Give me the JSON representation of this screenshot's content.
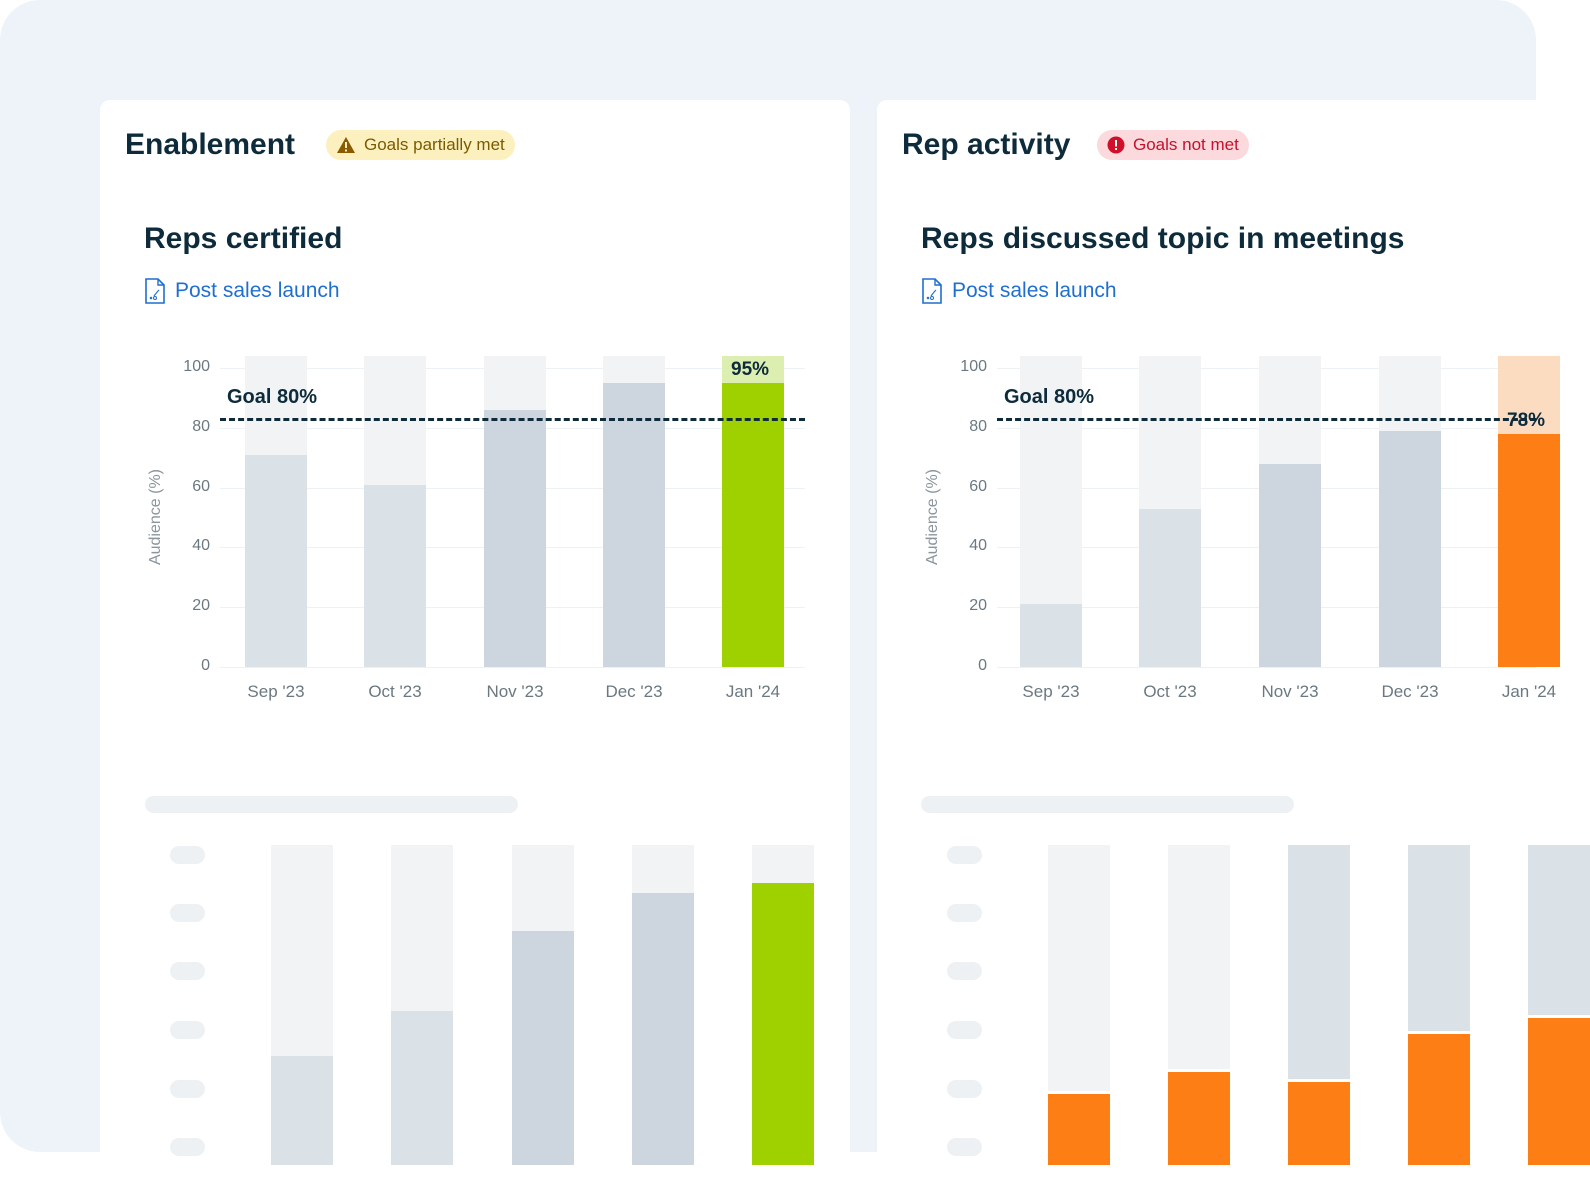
{
  "colors": {
    "page_bg": "#eef3fa",
    "bar_bg": "#f1f3f5",
    "bar_past": "#dbe2e7",
    "bar_past2": "#cdd6df",
    "goal_met": "#9fd100",
    "goal_met_bg": "#dcefb0",
    "goal_missed": "#fd7e14",
    "goal_missed_bg": "#fcdcc1",
    "link": "#1f6fd1"
  },
  "cards": [
    {
      "title": "Enablement",
      "badge": {
        "label": "Goals partially met",
        "icon": "warning-triangle-icon",
        "bg": "#fdf0bf",
        "fg": "#7a5b00",
        "icon_color": "#8a5a00"
      },
      "chart_data": {
        "type": "bar",
        "title": "Reps certified",
        "subtitle": "Post sales launch",
        "subtitle_icon": "document-playbook-icon",
        "ylabel": "Audience (%)",
        "ylim": [
          0,
          100
        ],
        "yticks": [
          0,
          20,
          40,
          60,
          80,
          100
        ],
        "categories": [
          "Sep '23",
          "Oct '23",
          "Nov '23",
          "Dec '23",
          "Jan '24"
        ],
        "values": [
          71,
          61,
          86,
          95,
          95
        ],
        "highlight_label": "95%",
        "goal": 80,
        "goal_label": "Goal 80%",
        "grid": true
      },
      "placeholder": {
        "fills": [
          34,
          48,
          73,
          85,
          88
        ],
        "highlight_color": "#9fd100"
      }
    },
    {
      "title": "Rep activity",
      "badge": {
        "label": "Goals not met",
        "icon": "error-circle-icon",
        "bg": "#fbd9dc",
        "fg": "#c8102e",
        "icon_color": "#d0102b"
      },
      "chart_data": {
        "type": "bar",
        "title": "Reps discussed topic in meetings",
        "subtitle": "Post sales launch",
        "subtitle_icon": "document-playbook-icon",
        "ylabel": "Audience (%)",
        "ylim": [
          0,
          100
        ],
        "yticks": [
          0,
          20,
          40,
          60,
          80,
          100
        ],
        "categories": [
          "Sep '23",
          "Oct '23",
          "Nov '23",
          "Dec '23",
          "Jan '24"
        ],
        "values": [
          21,
          53,
          68,
          79,
          78
        ],
        "highlight_label": "78%",
        "goal": 80,
        "goal_label": "Goal 80%",
        "grid": true
      },
      "placeholder": {
        "fills": [
          23,
          30,
          27,
          42,
          47
        ],
        "highlight_color": "#fd7e14"
      }
    }
  ]
}
